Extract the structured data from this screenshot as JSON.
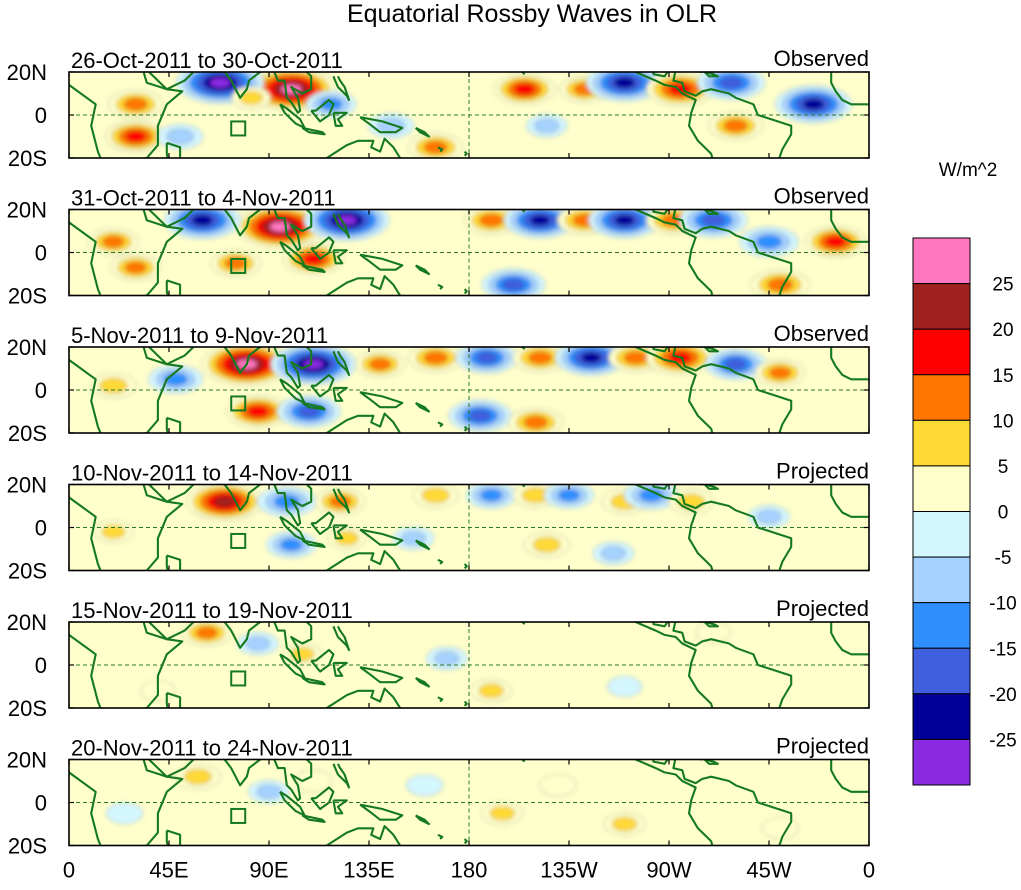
{
  "chart_data": {
    "type": "heatmap",
    "title": "Equatorial Rossby Waves in OLR",
    "units": "W/m^2",
    "x_tick_labels": [
      "0",
      "45E",
      "90E",
      "135E",
      "180",
      "135W",
      "90W",
      "45W",
      "0"
    ],
    "x_range_deg_east": [
      0,
      360
    ],
    "y_tick_labels": [
      "20N",
      "0",
      "20S"
    ],
    "y_range_deg": [
      -20,
      20
    ],
    "colorbar": {
      "labels": [
        "25",
        "20",
        "15",
        "10",
        "5",
        "0",
        "-5",
        "-10",
        "-15",
        "-20",
        "-25"
      ],
      "levels": [
        25,
        20,
        15,
        10,
        5,
        0,
        -5,
        -10,
        -15,
        -20,
        -25
      ],
      "colors": [
        "#ff77bf",
        "#a0221e",
        "#ff0000",
        "#ff7700",
        "#ffd934",
        "#ffffcc",
        "#d4f6ff",
        "#a6d2ff",
        "#2f8fff",
        "#3f5fdf",
        "#000099",
        "#8a2be2"
      ]
    },
    "panels": [
      {
        "period": "26-Oct-2011 to 30-Oct-2011",
        "status": "Observed",
        "anomalies": [
          {
            "lon": 100,
            "lat": 12,
            "value": 28
          },
          {
            "lon": 68,
            "lat": 15,
            "value": -27
          },
          {
            "lon": 82,
            "lat": 8,
            "value": 5
          },
          {
            "lon": 118,
            "lat": 5,
            "value": -10
          },
          {
            "lon": 165,
            "lat": -15,
            "value": 12
          },
          {
            "lon": 145,
            "lat": -5,
            "value": -8
          },
          {
            "lon": 205,
            "lat": 12,
            "value": 15
          },
          {
            "lon": 232,
            "lat": 12,
            "value": 10
          },
          {
            "lon": 250,
            "lat": 15,
            "value": -22
          },
          {
            "lon": 275,
            "lat": 12,
            "value": 18
          },
          {
            "lon": 298,
            "lat": 15,
            "value": -18
          },
          {
            "lon": 335,
            "lat": 5,
            "value": -22
          },
          {
            "lon": 300,
            "lat": -5,
            "value": 12
          },
          {
            "lon": 30,
            "lat": 5,
            "value": 12
          },
          {
            "lon": 30,
            "lat": -10,
            "value": 15
          },
          {
            "lon": 215,
            "lat": -5,
            "value": -6
          },
          {
            "lon": 50,
            "lat": -10,
            "value": -8
          }
        ]
      },
      {
        "period": "31-Oct-2011 to 4-Nov-2011",
        "status": "Observed",
        "anomalies": [
          {
            "lon": 95,
            "lat": 12,
            "value": 28
          },
          {
            "lon": 60,
            "lat": 15,
            "value": -22
          },
          {
            "lon": 125,
            "lat": 15,
            "value": -26
          },
          {
            "lon": 110,
            "lat": -3,
            "value": 15
          },
          {
            "lon": 190,
            "lat": 15,
            "value": 12
          },
          {
            "lon": 212,
            "lat": 15,
            "value": -20
          },
          {
            "lon": 232,
            "lat": 15,
            "value": 12
          },
          {
            "lon": 250,
            "lat": 15,
            "value": -20
          },
          {
            "lon": 272,
            "lat": 15,
            "value": 12
          },
          {
            "lon": 290,
            "lat": 15,
            "value": -18
          },
          {
            "lon": 315,
            "lat": 5,
            "value": -14
          },
          {
            "lon": 345,
            "lat": 5,
            "value": 15
          },
          {
            "lon": 20,
            "lat": 5,
            "value": 10
          },
          {
            "lon": 30,
            "lat": -7,
            "value": 10
          },
          {
            "lon": 75,
            "lat": -5,
            "value": 10
          },
          {
            "lon": 200,
            "lat": -15,
            "value": -16
          },
          {
            "lon": 320,
            "lat": -15,
            "value": 14
          }
        ]
      },
      {
        "period": "5-Nov-2011 to 9-Nov-2011",
        "status": "Observed",
        "anomalies": [
          {
            "lon": 80,
            "lat": 12,
            "value": 28
          },
          {
            "lon": 110,
            "lat": 12,
            "value": -26
          },
          {
            "lon": 140,
            "lat": 12,
            "value": 10
          },
          {
            "lon": 165,
            "lat": 15,
            "value": 12
          },
          {
            "lon": 188,
            "lat": 15,
            "value": -15
          },
          {
            "lon": 212,
            "lat": 15,
            "value": 12
          },
          {
            "lon": 235,
            "lat": 15,
            "value": -20
          },
          {
            "lon": 255,
            "lat": 15,
            "value": 12
          },
          {
            "lon": 275,
            "lat": 15,
            "value": 18
          },
          {
            "lon": 300,
            "lat": 12,
            "value": -15
          },
          {
            "lon": 320,
            "lat": 8,
            "value": 10
          },
          {
            "lon": 48,
            "lat": 5,
            "value": -12
          },
          {
            "lon": 20,
            "lat": 2,
            "value": 8
          },
          {
            "lon": 85,
            "lat": -10,
            "value": 16
          },
          {
            "lon": 108,
            "lat": -10,
            "value": -16
          },
          {
            "lon": 185,
            "lat": -12,
            "value": -16
          },
          {
            "lon": 210,
            "lat": -15,
            "value": 12
          }
        ]
      },
      {
        "period": "10-Nov-2011 to 14-Nov-2011",
        "status": "Projected",
        "anomalies": [
          {
            "lon": 70,
            "lat": 12,
            "value": 22
          },
          {
            "lon": 98,
            "lat": 12,
            "value": -14
          },
          {
            "lon": 122,
            "lat": 12,
            "value": 10
          },
          {
            "lon": 165,
            "lat": 15,
            "value": 8
          },
          {
            "lon": 190,
            "lat": 15,
            "value": -10
          },
          {
            "lon": 210,
            "lat": 15,
            "value": 8
          },
          {
            "lon": 225,
            "lat": 15,
            "value": -10
          },
          {
            "lon": 250,
            "lat": 12,
            "value": 8
          },
          {
            "lon": 262,
            "lat": 15,
            "value": -12
          },
          {
            "lon": 280,
            "lat": 12,
            "value": 8
          },
          {
            "lon": 100,
            "lat": -8,
            "value": -10
          },
          {
            "lon": 125,
            "lat": -5,
            "value": 5
          },
          {
            "lon": 155,
            "lat": -5,
            "value": -6
          },
          {
            "lon": 215,
            "lat": -8,
            "value": 8
          },
          {
            "lon": 245,
            "lat": -12,
            "value": -6
          },
          {
            "lon": 20,
            "lat": -2,
            "value": 5
          },
          {
            "lon": 315,
            "lat": 5,
            "value": -6
          }
        ]
      },
      {
        "period": "15-Nov-2011 to 19-Nov-2011",
        "status": "Projected",
        "anomalies": [
          {
            "lon": 62,
            "lat": 15,
            "value": 10
          },
          {
            "lon": 85,
            "lat": 10,
            "value": -6
          },
          {
            "lon": 105,
            "lat": 5,
            "value": 5
          },
          {
            "lon": 170,
            "lat": 3,
            "value": -6
          },
          {
            "lon": 190,
            "lat": -12,
            "value": 6
          },
          {
            "lon": 250,
            "lat": -10,
            "value": -3
          },
          {
            "lon": 40,
            "lat": -12,
            "value": 3
          },
          {
            "lon": 290,
            "lat": 15,
            "value": 3
          }
        ]
      },
      {
        "period": "20-Nov-2011 to 24-Nov-2011",
        "status": "Projected",
        "anomalies": [
          {
            "lon": 58,
            "lat": 12,
            "value": 8
          },
          {
            "lon": 90,
            "lat": 5,
            "value": -6
          },
          {
            "lon": 110,
            "lat": 10,
            "value": 4
          },
          {
            "lon": 160,
            "lat": 8,
            "value": -4
          },
          {
            "lon": 195,
            "lat": -5,
            "value": 6
          },
          {
            "lon": 220,
            "lat": 8,
            "value": 4
          },
          {
            "lon": 250,
            "lat": -10,
            "value": 6
          },
          {
            "lon": 320,
            "lat": -12,
            "value": 4
          },
          {
            "lon": 25,
            "lat": -5,
            "value": -4
          }
        ]
      }
    ]
  }
}
